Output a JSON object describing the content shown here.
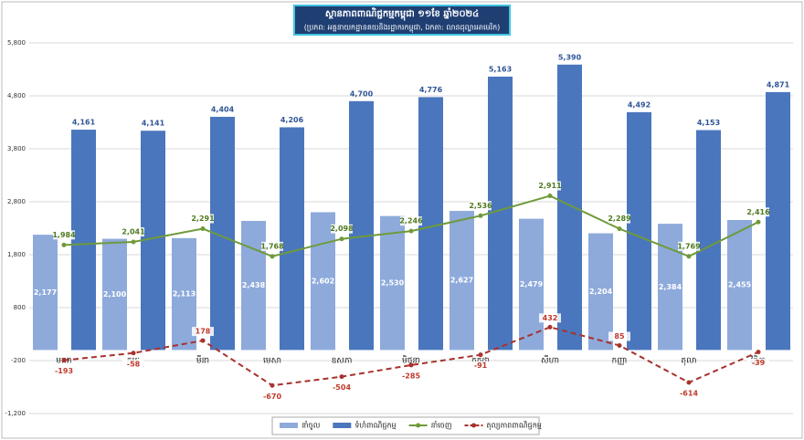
{
  "chart_data": {
    "type": "bar_line",
    "title": "ស្ថានភាពពាណិជ្ជកម្មកម្ពុជា ១១ខែ ឆ្នាំ២០២៤",
    "subtitle": "(ប្រភព: អគ្គនាយកដ្ឋានគយនិងរដ្ឋាករកម្ពុជា, ឯកតា: លានដុល្លារអាមេរិក)",
    "categories": [
      "មករា",
      "កុម្ភៈ",
      "មីនា",
      "មេសា",
      "ឧសភា",
      "មិថុនា",
      "កក្កដា",
      "សីហា",
      "កញ្ញា",
      "តុលា",
      "វិច្ឆិកា"
    ],
    "ylim": [
      -1200,
      5800
    ],
    "yticks": [
      {
        "value": -1200,
        "label": "-1,200"
      },
      -200,
      800,
      {
        "value": 1800,
        "label": "1,800"
      },
      {
        "value": 2800,
        "label": "2,800"
      },
      {
        "value": 3800,
        "label": "3,800"
      },
      {
        "value": 4800,
        "label": "4,800"
      },
      {
        "value": 5800,
        "label": "5,800"
      }
    ],
    "grid": true,
    "series": [
      {
        "name": "នាំចូល",
        "kind": "bar",
        "color": "#8eaadb",
        "values": [
          2177,
          2100,
          2113,
          2438,
          2602,
          2530,
          2627,
          2479,
          2204,
          2384,
          2455
        ],
        "value_labels": [
          "2,177",
          "2,100",
          "2,113",
          "2,438",
          "2,602",
          "2,530",
          "2,627",
          "2,479",
          "2,204",
          "2,384",
          "2,455"
        ]
      },
      {
        "name": "ទំហំពាណិជ្ជកម្ម",
        "kind": "bar",
        "color": "#4a76bd",
        "values": [
          4161,
          4141,
          4404,
          4206,
          4700,
          4776,
          5163,
          5390,
          4492,
          4153,
          4871
        ],
        "value_labels": [
          "4,161",
          "4,141",
          "4,404",
          "4,206",
          "4,700",
          "4,776",
          "5,163",
          "5,390",
          "4,492",
          "4,153",
          "4,871"
        ]
      },
      {
        "name": "នាំចេញ",
        "kind": "line",
        "color": "#6f9a3a",
        "values": [
          1984,
          2041,
          2291,
          1768,
          2098,
          2246,
          2536,
          2911,
          2289,
          1769,
          2416
        ],
        "value_labels": [
          "1,984",
          "2,041",
          "2,291",
          "1,768",
          "2,098",
          "2,246",
          "2,536",
          "2,911",
          "2,289",
          "1,769",
          "2,416"
        ]
      },
      {
        "name": "តុល្យភាពពាណិជ្ជកម្ម",
        "kind": "dashed",
        "color": "#a8322d",
        "values": [
          -193,
          -58,
          178,
          -670,
          -504,
          -285,
          -91,
          432,
          85,
          -614,
          -39
        ]
      }
    ]
  }
}
